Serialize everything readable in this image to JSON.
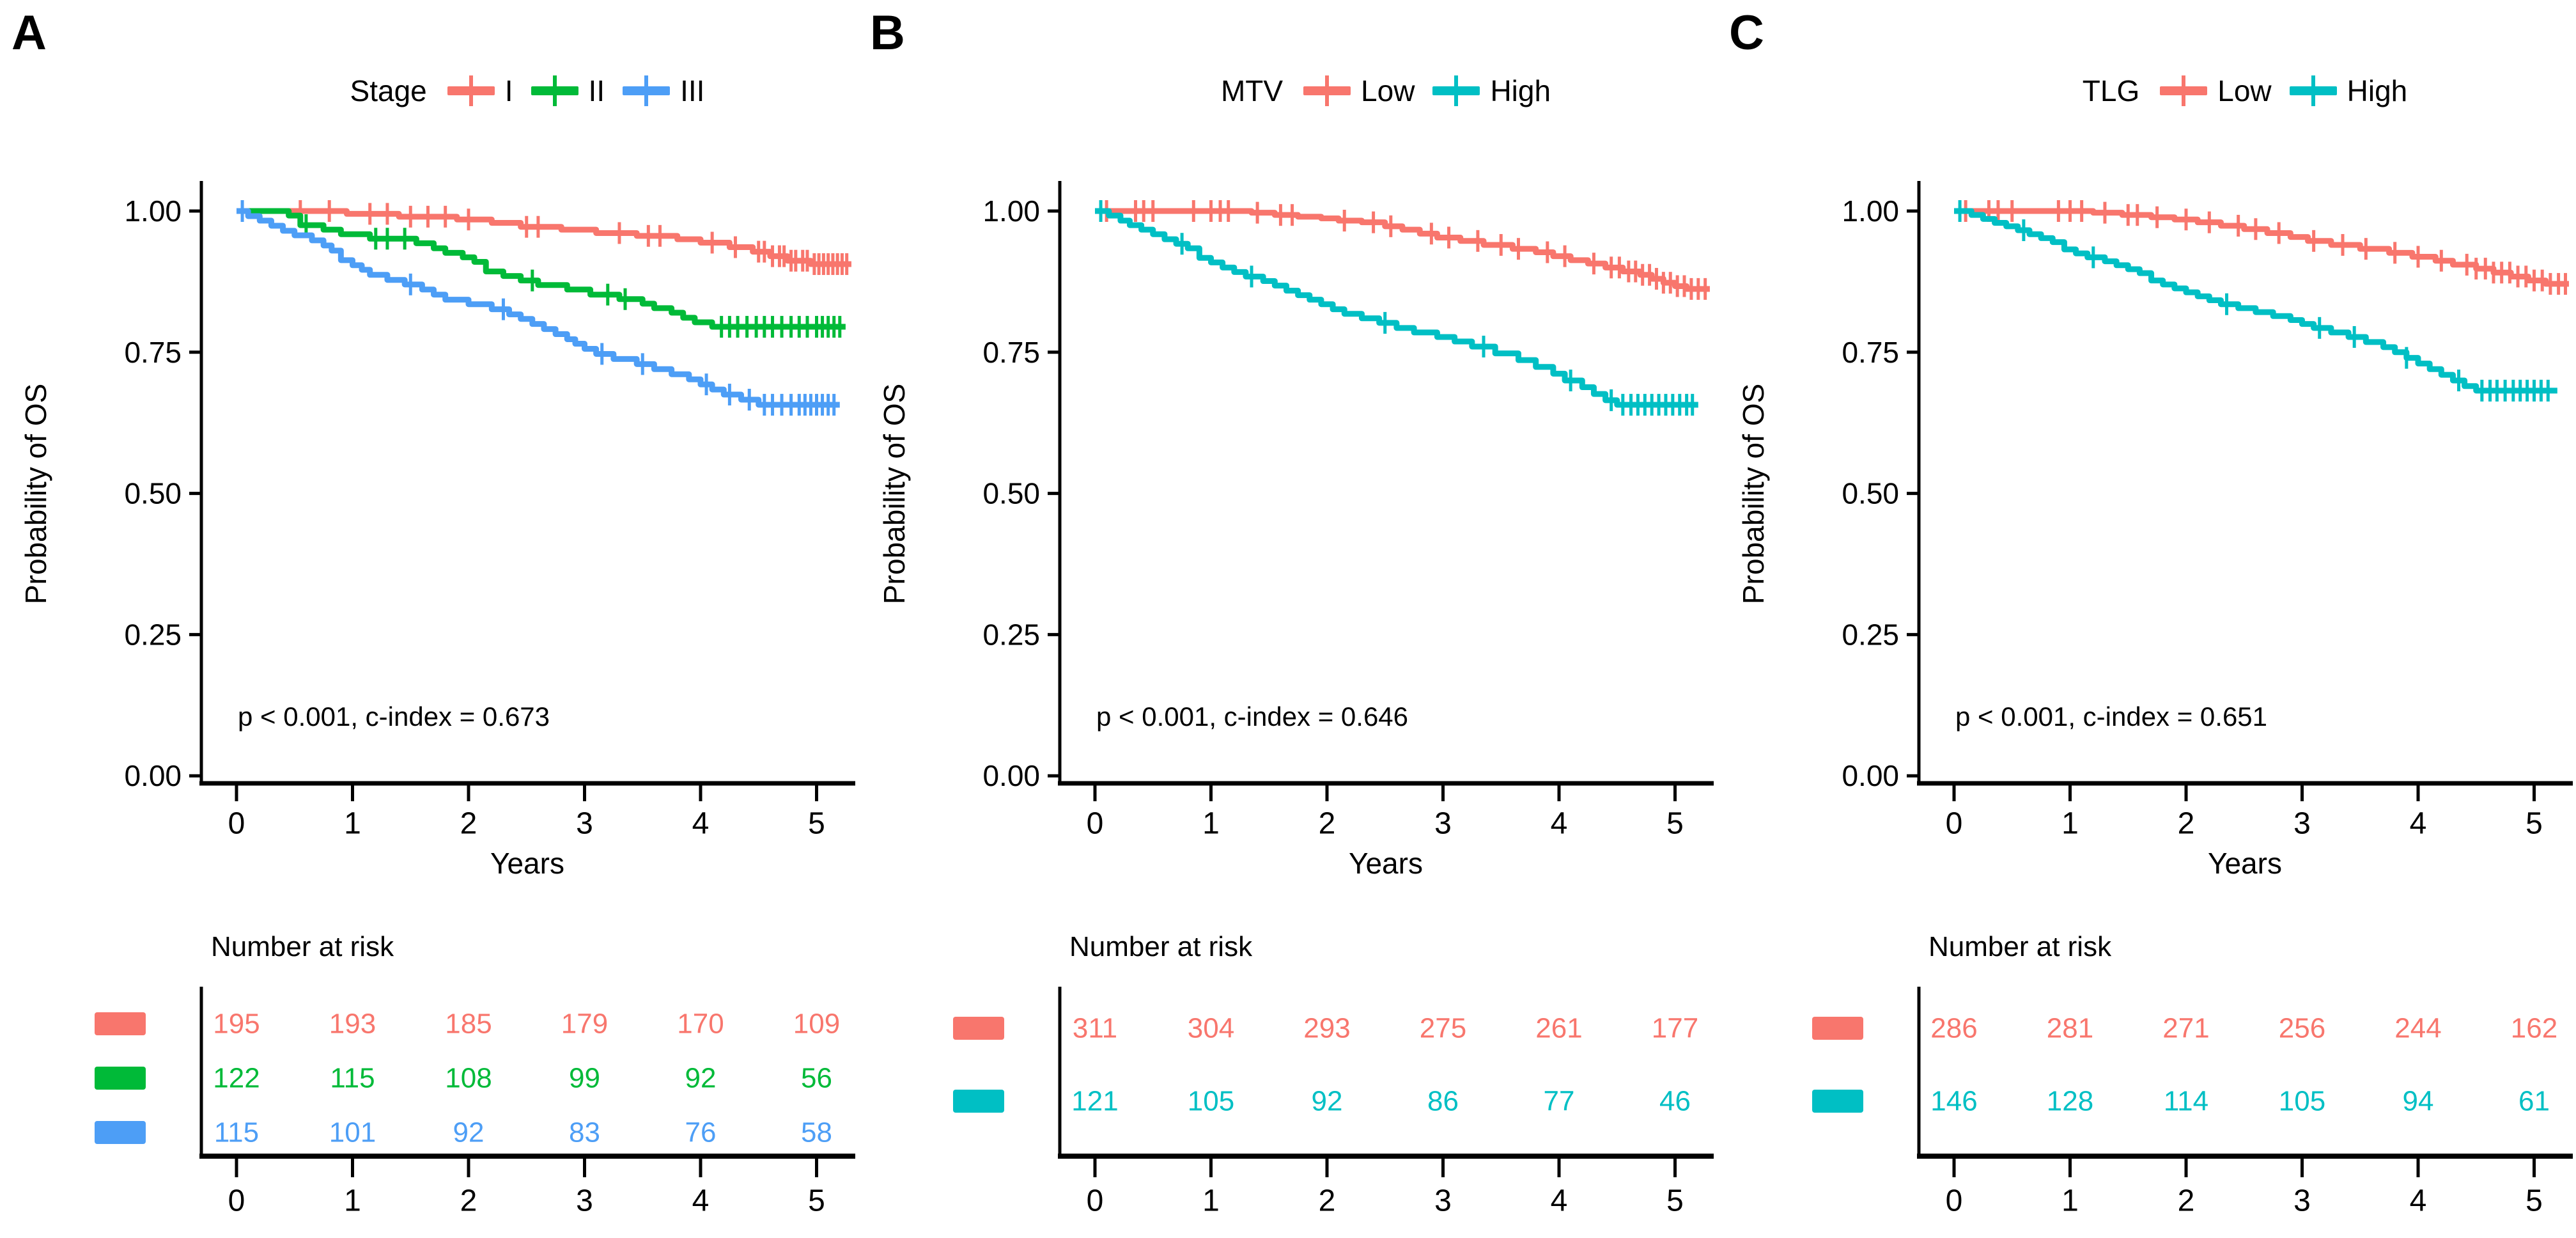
{
  "figure": {
    "panels": [
      {
        "label": "A"
      },
      {
        "label": "B"
      },
      {
        "label": "C"
      }
    ]
  },
  "colors": {
    "salmon": "#F8766D",
    "green": "#00BA38",
    "blue": "#4D9EF6",
    "teal": "#00BFC4",
    "axis": "#000000"
  },
  "chart_data": [
    {
      "type": "line",
      "km_step": true,
      "panel": "A",
      "legend_title": "Stage",
      "xlabel": "Years",
      "ylabel": "Probability of OS",
      "annotation": "p < 0.001, c-index = 0.673",
      "xlim": [
        0,
        5.35
      ],
      "ylim": [
        0,
        1.05
      ],
      "xticks": [
        0,
        1,
        2,
        3,
        4,
        5
      ],
      "yticks": [
        1.0,
        0.75,
        0.5,
        0.25,
        0.0
      ],
      "grid": false,
      "legend_position": "top",
      "series": [
        {
          "name": "I",
          "color": "#F8766D",
          "x": [
            0.95,
            1.4,
            1.9,
            2.2,
            2.45,
            2.8,
            3.1,
            3.45,
            3.8,
            4.0,
            4.25,
            4.45,
            4.6,
            4.75,
            4.95
          ],
          "y": [
            0.995,
            0.99,
            0.985,
            0.979,
            0.972,
            0.967,
            0.961,
            0.956,
            0.95,
            0.944,
            0.936,
            0.928,
            0.92,
            0.912,
            0.906
          ],
          "end_x": 5.3,
          "censor_x": [
            0.55,
            0.8,
            1.15,
            1.3,
            1.5,
            1.65,
            1.8,
            2.0,
            2.5,
            2.6,
            3.3,
            3.55,
            3.65,
            4.1,
            4.3,
            4.5,
            4.55,
            4.62,
            4.68,
            4.72,
            4.78,
            4.82,
            4.88,
            4.92,
            4.98,
            5.02,
            5.06,
            5.1,
            5.14,
            5.18,
            5.22,
            5.26
          ]
        },
        {
          "name": "II",
          "color": "#00BA38",
          "x": [
            0.45,
            0.55,
            0.75,
            0.9,
            1.15,
            1.55,
            1.7,
            1.8,
            1.95,
            2.05,
            2.15,
            2.3,
            2.45,
            2.6,
            2.85,
            3.05,
            3.3,
            3.5,
            3.6,
            3.75,
            3.85,
            3.95,
            4.1
          ],
          "y": [
            0.992,
            0.975,
            0.967,
            0.959,
            0.951,
            0.943,
            0.934,
            0.926,
            0.918,
            0.91,
            0.893,
            0.885,
            0.877,
            0.869,
            0.861,
            0.852,
            0.844,
            0.836,
            0.828,
            0.82,
            0.811,
            0.803,
            0.795
          ],
          "end_x": 5.25,
          "censor_x": [
            0.6,
            1.2,
            1.3,
            1.45,
            2.55,
            3.2,
            3.35,
            4.18,
            4.25,
            4.32,
            4.4,
            4.48,
            4.55,
            4.62,
            4.7,
            4.78,
            4.85,
            4.92,
            5.0,
            5.05,
            5.1,
            5.15,
            5.2
          ]
        },
        {
          "name": "III",
          "color": "#4D9EF6",
          "x": [
            0.1,
            0.2,
            0.3,
            0.4,
            0.5,
            0.65,
            0.75,
            0.82,
            0.9,
            1.0,
            1.08,
            1.15,
            1.3,
            1.45,
            1.6,
            1.7,
            1.8,
            2.0,
            2.2,
            2.35,
            2.45,
            2.55,
            2.65,
            2.75,
            2.85,
            2.92,
            3.0,
            3.1,
            3.25,
            3.45,
            3.6,
            3.75,
            3.9,
            4.0,
            4.1,
            4.2,
            4.35,
            4.5
          ],
          "y": [
            0.991,
            0.983,
            0.974,
            0.965,
            0.957,
            0.948,
            0.939,
            0.93,
            0.913,
            0.904,
            0.896,
            0.887,
            0.878,
            0.87,
            0.861,
            0.852,
            0.843,
            0.835,
            0.826,
            0.817,
            0.809,
            0.8,
            0.791,
            0.782,
            0.773,
            0.765,
            0.756,
            0.747,
            0.738,
            0.729,
            0.72,
            0.711,
            0.702,
            0.693,
            0.684,
            0.675,
            0.666,
            0.657
          ],
          "end_x": 5.2,
          "censor_x": [
            0.05,
            1.5,
            2.3,
            3.15,
            3.5,
            4.05,
            4.25,
            4.42,
            4.55,
            4.62,
            4.7,
            4.78,
            4.85,
            4.9,
            4.95,
            5.0,
            5.05,
            5.1,
            5.15
          ]
        }
      ],
      "number_at_risk": {
        "label": "Number at risk",
        "times": [
          0,
          1,
          2,
          3,
          4,
          5
        ],
        "rows": [
          {
            "name": "I",
            "counts": [
              195,
              193,
              185,
              179,
              170,
              109
            ]
          },
          {
            "name": "II",
            "counts": [
              122,
              115,
              108,
              99,
              92,
              56
            ]
          },
          {
            "name": "III",
            "counts": [
              115,
              101,
              92,
              83,
              76,
              58
            ]
          }
        ]
      }
    },
    {
      "type": "line",
      "km_step": true,
      "panel": "B",
      "legend_title": "MTV",
      "xlabel": "Years",
      "ylabel": "Probability of OS",
      "annotation": "p < 0.001, c-index = 0.646",
      "xlim": [
        0,
        5.35
      ],
      "ylim": [
        0,
        1.05
      ],
      "xticks": [
        0,
        1,
        2,
        3,
        4,
        5
      ],
      "yticks": [
        1.0,
        0.75,
        0.5,
        0.25,
        0.0
      ],
      "grid": false,
      "legend_position": "top",
      "series": [
        {
          "name": "Low",
          "color": "#F8766D",
          "x": [
            1.35,
            1.55,
            1.75,
            1.95,
            2.1,
            2.3,
            2.5,
            2.65,
            2.8,
            2.95,
            3.15,
            3.35,
            3.6,
            3.8,
            3.95,
            4.1,
            4.25,
            4.4,
            4.55,
            4.7,
            4.8,
            4.9,
            5.0,
            5.1
          ],
          "y": [
            0.997,
            0.993,
            0.99,
            0.987,
            0.983,
            0.98,
            0.973,
            0.967,
            0.96,
            0.953,
            0.947,
            0.94,
            0.933,
            0.927,
            0.92,
            0.913,
            0.907,
            0.9,
            0.893,
            0.887,
            0.88,
            0.873,
            0.867,
            0.862
          ],
          "end_x": 5.3,
          "censor_x": [
            0.1,
            0.35,
            0.42,
            0.5,
            0.85,
            1.0,
            1.08,
            1.15,
            1.4,
            1.6,
            1.7,
            2.15,
            2.4,
            2.55,
            2.9,
            3.05,
            3.3,
            3.5,
            3.65,
            3.9,
            4.05,
            4.3,
            4.45,
            4.52,
            4.6,
            4.66,
            4.72,
            4.78,
            4.84,
            4.9,
            4.96,
            5.02,
            5.08,
            5.14,
            5.2,
            5.26
          ]
        },
        {
          "name": "High",
          "color": "#00BFC4",
          "x": [
            0.12,
            0.22,
            0.3,
            0.4,
            0.5,
            0.6,
            0.7,
            0.8,
            0.9,
            1.0,
            1.1,
            1.2,
            1.3,
            1.45,
            1.55,
            1.65,
            1.75,
            1.85,
            1.95,
            2.05,
            2.15,
            2.3,
            2.45,
            2.6,
            2.75,
            2.95,
            3.1,
            3.25,
            3.45,
            3.65,
            3.8,
            3.95,
            4.05,
            4.2,
            4.3,
            4.4,
            4.5
          ],
          "y": [
            0.992,
            0.983,
            0.975,
            0.967,
            0.959,
            0.95,
            0.942,
            0.934,
            0.917,
            0.909,
            0.9,
            0.892,
            0.884,
            0.876,
            0.868,
            0.859,
            0.851,
            0.843,
            0.835,
            0.826,
            0.818,
            0.81,
            0.802,
            0.793,
            0.785,
            0.777,
            0.769,
            0.76,
            0.748,
            0.736,
            0.724,
            0.712,
            0.7,
            0.688,
            0.676,
            0.665,
            0.657
          ],
          "end_x": 5.2,
          "censor_x": [
            0.05,
            0.75,
            1.35,
            2.5,
            3.35,
            4.1,
            4.45,
            4.55,
            4.62,
            4.68,
            4.74,
            4.8,
            4.86,
            4.92,
            4.98,
            5.04,
            5.1,
            5.15
          ]
        }
      ],
      "number_at_risk": {
        "label": "Number at risk",
        "times": [
          0,
          1,
          2,
          3,
          4,
          5
        ],
        "rows": [
          {
            "name": "Low",
            "counts": [
              311,
              304,
              293,
              275,
              261,
              177
            ]
          },
          {
            "name": "High",
            "counts": [
              121,
              105,
              92,
              86,
              77,
              46
            ]
          }
        ]
      }
    },
    {
      "type": "line",
      "km_step": true,
      "panel": "C",
      "legend_title": "TLG",
      "xlabel": "Years",
      "ylabel": "Probability of OS",
      "annotation": "p < 0.001, c-index = 0.651",
      "xlim": [
        0,
        5.35
      ],
      "ylim": [
        0,
        1.05
      ],
      "xticks": [
        0,
        1,
        2,
        3,
        4,
        5
      ],
      "yticks": [
        1.0,
        0.75,
        0.5,
        0.25,
        0.0
      ],
      "grid": false,
      "legend_position": "top",
      "series": [
        {
          "name": "Low",
          "color": "#F8766D",
          "x": [
            1.2,
            1.45,
            1.7,
            1.9,
            2.1,
            2.3,
            2.5,
            2.7,
            2.9,
            3.05,
            3.25,
            3.5,
            3.75,
            3.95,
            4.15,
            4.3,
            4.5,
            4.65,
            4.8,
            4.95,
            5.1
          ],
          "y": [
            0.997,
            0.993,
            0.989,
            0.985,
            0.98,
            0.974,
            0.968,
            0.961,
            0.954,
            0.947,
            0.94,
            0.933,
            0.926,
            0.919,
            0.912,
            0.905,
            0.898,
            0.891,
            0.884,
            0.877,
            0.871
          ],
          "end_x": 5.3,
          "censor_x": [
            0.1,
            0.3,
            0.38,
            0.5,
            0.9,
            1.0,
            1.1,
            1.3,
            1.5,
            1.58,
            1.75,
            2.0,
            2.2,
            2.45,
            2.6,
            2.8,
            3.1,
            3.35,
            3.55,
            3.8,
            4.0,
            4.2,
            4.42,
            4.5,
            4.58,
            4.65,
            4.72,
            4.79,
            4.86,
            4.93,
            5.0,
            5.07,
            5.14,
            5.21,
            5.27
          ]
        },
        {
          "name": "High",
          "color": "#00BFC4",
          "x": [
            0.15,
            0.25,
            0.35,
            0.45,
            0.55,
            0.65,
            0.75,
            0.85,
            0.95,
            1.05,
            1.15,
            1.3,
            1.4,
            1.5,
            1.6,
            1.7,
            1.8,
            1.9,
            2.0,
            2.1,
            2.2,
            2.3,
            2.45,
            2.6,
            2.75,
            2.9,
            3.0,
            3.1,
            3.25,
            3.4,
            3.55,
            3.7,
            3.8,
            3.9,
            4.0,
            4.1,
            4.2,
            4.3,
            4.4,
            4.5
          ],
          "y": [
            0.993,
            0.986,
            0.979,
            0.973,
            0.966,
            0.959,
            0.952,
            0.945,
            0.932,
            0.925,
            0.918,
            0.911,
            0.904,
            0.897,
            0.89,
            0.877,
            0.87,
            0.863,
            0.856,
            0.849,
            0.842,
            0.835,
            0.828,
            0.821,
            0.814,
            0.807,
            0.8,
            0.793,
            0.785,
            0.777,
            0.768,
            0.759,
            0.75,
            0.74,
            0.73,
            0.72,
            0.71,
            0.7,
            0.69,
            0.682
          ],
          "end_x": 5.2,
          "censor_x": [
            0.05,
            0.6,
            1.2,
            2.35,
            3.15,
            3.45,
            3.9,
            4.35,
            4.55,
            4.62,
            4.68,
            4.75,
            4.82,
            4.88,
            4.94,
            5.0,
            5.06,
            5.12
          ]
        }
      ],
      "number_at_risk": {
        "label": "Number at risk",
        "times": [
          0,
          1,
          2,
          3,
          4,
          5
        ],
        "rows": [
          {
            "name": "Low",
            "counts": [
              286,
              281,
              271,
              256,
              244,
              162
            ]
          },
          {
            "name": "High",
            "counts": [
              146,
              128,
              114,
              105,
              94,
              61
            ]
          }
        ]
      }
    }
  ]
}
